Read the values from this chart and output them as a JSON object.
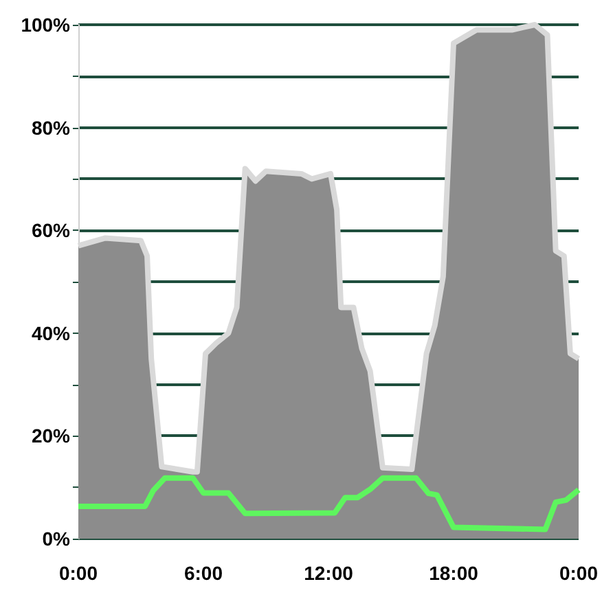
{
  "chart_data": {
    "type": "area",
    "xlim": [
      0,
      24
    ],
    "xticks": [
      {
        "value": 0,
        "label": "0:00"
      },
      {
        "value": 6,
        "label": "6:00"
      },
      {
        "value": 12,
        "label": "12:00"
      },
      {
        "value": 18,
        "label": "18:00"
      },
      {
        "value": 24,
        "label": "0:00"
      }
    ],
    "ylim": [
      0,
      100
    ],
    "yticks": [
      {
        "value": 0,
        "label": "0%"
      },
      {
        "value": 10,
        "label": null
      },
      {
        "value": 20,
        "label": "20%"
      },
      {
        "value": 30,
        "label": null
      },
      {
        "value": 40,
        "label": "40%"
      },
      {
        "value": 50,
        "label": null
      },
      {
        "value": 60,
        "label": "60%"
      },
      {
        "value": 70,
        "label": null
      },
      {
        "value": 80,
        "label": "80%"
      },
      {
        "value": 90,
        "label": null
      },
      {
        "value": 100,
        "label": "100%"
      }
    ],
    "grid": "y",
    "series": [
      {
        "color": "#8c8c8c",
        "x": [
          0,
          1.3,
          3.0,
          3.3,
          3.5,
          4.0,
          5.5,
          5.7,
          6.1,
          6.6,
          7.2,
          7.6,
          8.0,
          8.5,
          9.0,
          10.7,
          11.2,
          12.1,
          12.4,
          12.6,
          13.2,
          13.6,
          14.0,
          14.6,
          16.0,
          16.7,
          17.1,
          17.5,
          18.0,
          19.1,
          20.8,
          21.9,
          22.5,
          22.9,
          23.3,
          23.6,
          24
        ],
        "values": [
          57,
          58.5,
          58,
          55,
          35,
          14,
          13,
          13,
          36,
          38,
          40,
          45,
          72,
          69.6,
          71.5,
          71,
          70,
          71,
          64,
          45,
          45,
          37,
          32.6,
          13.8,
          13.5,
          36,
          41.5,
          51,
          96.4,
          99,
          99,
          100,
          98,
          56,
          55,
          36,
          35
        ]
      },
      {
        "type": "line",
        "color": "#5ef55e",
        "x": [
          0,
          3.2,
          3.6,
          4.15,
          5.5,
          6.0,
          7.2,
          8.0,
          12.3,
          12.8,
          13.4,
          14.0,
          14.6,
          16.2,
          16.8,
          17.2,
          18.0,
          22.4,
          22.9,
          23.4,
          24
        ],
        "values": [
          6.3,
          6.3,
          9.4,
          11.8,
          11.8,
          8.9,
          8.9,
          4.9,
          5,
          8,
          8,
          9.6,
          11.8,
          11.8,
          8.8,
          8.5,
          2.2,
          1.8,
          7.1,
          7.5,
          9.5
        ]
      }
    ]
  }
}
